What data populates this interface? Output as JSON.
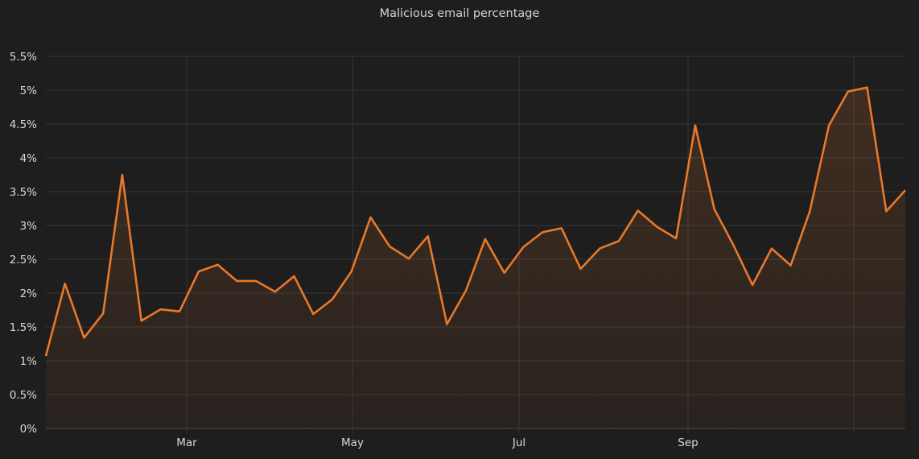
{
  "chart_data": {
    "type": "area",
    "title": "Malicious email percentage",
    "xlabel": "",
    "ylabel": "",
    "y_unit": "%",
    "ylim": [
      0,
      5.5
    ],
    "y_ticks": [
      0,
      0.5,
      1,
      1.5,
      2,
      2.5,
      3,
      3.5,
      4,
      4.5,
      5,
      5.5
    ],
    "y_tick_labels": [
      "0%",
      "0.5%",
      "1%",
      "1.5%",
      "2%",
      "2.5%",
      "3%",
      "3.5%",
      "4%",
      "4.5%",
      "5%",
      "5.5%"
    ],
    "x_tick_labels": [
      "Mar",
      "May",
      "Jul",
      "Sep"
    ],
    "grid": true,
    "line_color": "#e8782a",
    "fill_color": "#e8782a",
    "series": [
      {
        "values": [
          1.07,
          2.14,
          1.34,
          1.7,
          3.75,
          1.59,
          1.76,
          1.73,
          2.32,
          2.42,
          2.18,
          2.18,
          2.02,
          2.25,
          1.69,
          1.91,
          2.32,
          3.12,
          2.69,
          2.51,
          2.84,
          1.54,
          2.04,
          2.8,
          2.3,
          2.68,
          2.9,
          2.96,
          2.36,
          2.66,
          2.77,
          3.22,
          2.98,
          2.81,
          4.48,
          3.24,
          2.71,
          2.12,
          2.66,
          2.41,
          3.21,
          4.48,
          4.98,
          5.04,
          3.21,
          3.52
        ]
      }
    ]
  }
}
